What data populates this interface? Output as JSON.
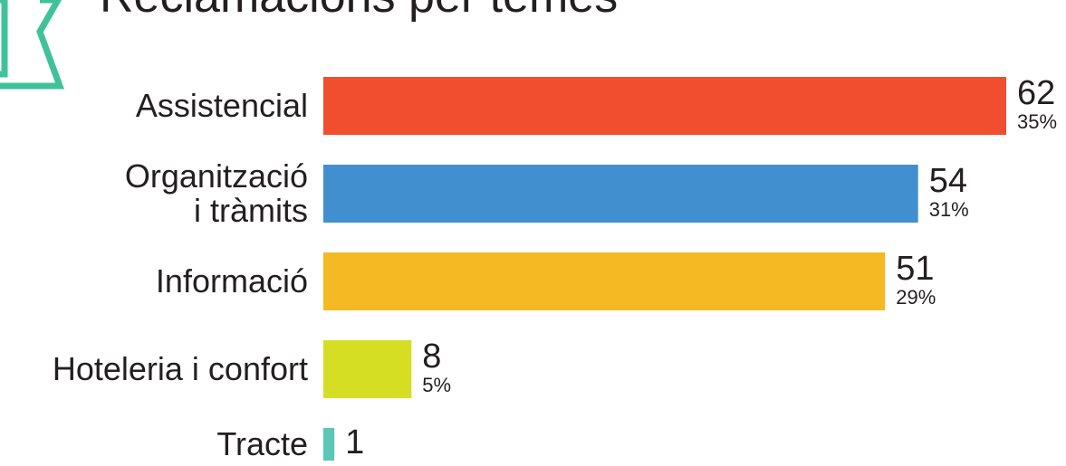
{
  "chart_data": {
    "type": "bar",
    "orientation": "horizontal",
    "title": "Reclamacions per temes",
    "categories": [
      [
        "Assistencial"
      ],
      [
        "Organització",
        "i tràmits"
      ],
      [
        "Informació"
      ],
      [
        "Hoteleria i confort"
      ],
      [
        "Tracte"
      ]
    ],
    "values": [
      62,
      54,
      51,
      8,
      1
    ],
    "value_labels": [
      "62",
      "54",
      "51",
      "8",
      "1"
    ],
    "percent_labels": [
      "35%",
      "31%",
      "29%",
      "5%",
      ""
    ],
    "colors": [
      "#f04e2f",
      "#418fce",
      "#f4b923",
      "#d6de23",
      "#5cc6b7"
    ],
    "xlim": [
      0,
      62
    ],
    "grid": false,
    "legend": "none"
  },
  "decoration": {
    "frame_color": "#3fc29a"
  }
}
